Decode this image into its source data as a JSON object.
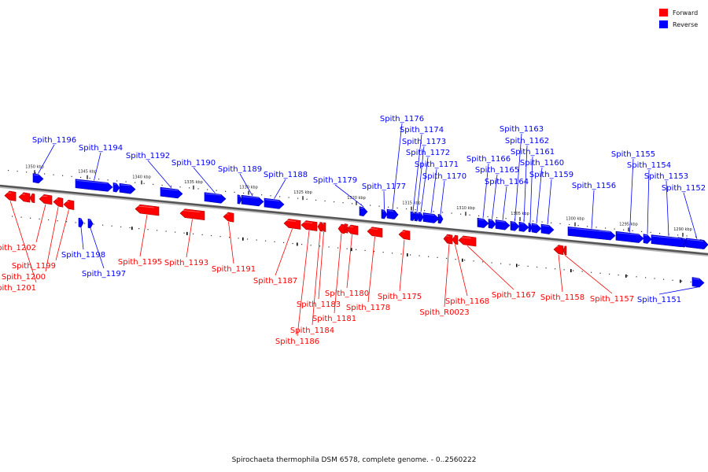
{
  "caption": "Spirochaeta thermophila DSM 6578, complete genome. - 0..2560222",
  "legend": [
    {
      "label": "Forward",
      "color": "#ff0000"
    },
    {
      "label": "Reverse",
      "color": "#0000ff"
    }
  ],
  "colors": {
    "forward": "#ff0000",
    "reverse": "#0000ff",
    "axis": "#555555"
  },
  "ticks": [
    "1350 kbp",
    "1345 kbp",
    "1340 kbp",
    "1335 kbp",
    "1330 kbp",
    "1325 kbp",
    "1320 kbp",
    "1315 kbp",
    "1310 kbp",
    "1305 kbp",
    "1300 kbp",
    "1295 kbp",
    "1290 kbp"
  ],
  "genes": [
    {
      "name": "Spith_1202",
      "strand": "forward"
    },
    {
      "name": "Spith_1201",
      "strand": "forward"
    },
    {
      "name": "Spith_1200",
      "strand": "forward"
    },
    {
      "name": "Spith_1199",
      "strand": "forward"
    },
    {
      "name": "Spith_1198",
      "strand": "reverse"
    },
    {
      "name": "Spith_1197",
      "strand": "reverse"
    },
    {
      "name": "Spith_1196",
      "strand": "reverse"
    },
    {
      "name": "Spith_1195",
      "strand": "forward"
    },
    {
      "name": "Spith_1194",
      "strand": "reverse"
    },
    {
      "name": "Spith_1193",
      "strand": "forward"
    },
    {
      "name": "Spith_1192",
      "strand": "reverse"
    },
    {
      "name": "Spith_1191",
      "strand": "forward"
    },
    {
      "name": "Spith_1190",
      "strand": "reverse"
    },
    {
      "name": "Spith_1189",
      "strand": "reverse"
    },
    {
      "name": "Spith_1188",
      "strand": "reverse"
    },
    {
      "name": "Spith_1187",
      "strand": "forward"
    },
    {
      "name": "Spith_1186",
      "strand": "forward"
    },
    {
      "name": "Spith_1184",
      "strand": "forward"
    },
    {
      "name": "Spith_1183",
      "strand": "forward"
    },
    {
      "name": "Spith_1181",
      "strand": "forward"
    },
    {
      "name": "Spith_1180",
      "strand": "forward"
    },
    {
      "name": "Spith_1179",
      "strand": "reverse"
    },
    {
      "name": "Spith_1178",
      "strand": "forward"
    },
    {
      "name": "Spith_1177",
      "strand": "reverse"
    },
    {
      "name": "Spith_1176",
      "strand": "reverse"
    },
    {
      "name": "Spith_1175",
      "strand": "forward"
    },
    {
      "name": "Spith_1174",
      "strand": "reverse"
    },
    {
      "name": "Spith_1173",
      "strand": "reverse"
    },
    {
      "name": "Spith_1172",
      "strand": "reverse"
    },
    {
      "name": "Spith_1171",
      "strand": "reverse"
    },
    {
      "name": "Spith_1170",
      "strand": "reverse"
    },
    {
      "name": "Spith_R0023",
      "strand": "forward"
    },
    {
      "name": "Spith_1168",
      "strand": "forward"
    },
    {
      "name": "Spith_1167",
      "strand": "forward"
    },
    {
      "name": "Spith_1166",
      "strand": "reverse"
    },
    {
      "name": "Spith_1165",
      "strand": "reverse"
    },
    {
      "name": "Spith_1164",
      "strand": "reverse"
    },
    {
      "name": "Spith_1163",
      "strand": "reverse"
    },
    {
      "name": "Spith_1162",
      "strand": "reverse"
    },
    {
      "name": "Spith_1161",
      "strand": "reverse"
    },
    {
      "name": "Spith_1160",
      "strand": "reverse"
    },
    {
      "name": "Spith_1159",
      "strand": "reverse"
    },
    {
      "name": "Spith_1158",
      "strand": "forward"
    },
    {
      "name": "Spith_1157",
      "strand": "forward"
    },
    {
      "name": "Spith_1156",
      "strand": "reverse"
    },
    {
      "name": "Spith_1155",
      "strand": "reverse"
    },
    {
      "name": "Spith_1154",
      "strand": "reverse"
    },
    {
      "name": "Spith_1153",
      "strand": "reverse"
    },
    {
      "name": "Spith_1152",
      "strand": "reverse"
    },
    {
      "name": "Spith_1151",
      "strand": "reverse"
    }
  ]
}
